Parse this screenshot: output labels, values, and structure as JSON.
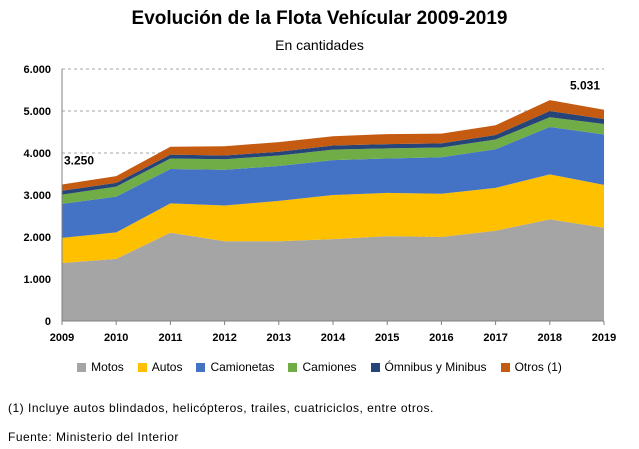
{
  "chart_data": {
    "type": "area",
    "stacked": true,
    "title": "Evolución de la Flota Vehícular 2009-2019",
    "subtitle": "En cantidades",
    "xlabel": "",
    "ylabel": "",
    "ylim": [
      0,
      6000
    ],
    "yticks": [
      0,
      1000,
      2000,
      3000,
      4000,
      5000,
      6000
    ],
    "ytick_labels": [
      "0",
      "1.000",
      "2.000",
      "3.000",
      "4.000",
      "5.000",
      "6.000"
    ],
    "categories": [
      "2009",
      "2010",
      "2011",
      "2012",
      "2013",
      "2014",
      "2015",
      "2016",
      "2017",
      "2018",
      "2019"
    ],
    "series": [
      {
        "name": "Motos",
        "color": "#a5a5a5",
        "values": [
          1380,
          1480,
          2100,
          1900,
          1900,
          1950,
          2020,
          2000,
          2150,
          2420,
          2220
        ]
      },
      {
        "name": "Autos",
        "color": "#ffc000",
        "values": [
          600,
          630,
          700,
          850,
          960,
          1050,
          1030,
          1030,
          1020,
          1070,
          1020
        ]
      },
      {
        "name": "Camionetas",
        "color": "#4472c4",
        "values": [
          810,
          850,
          820,
          850,
          830,
          830,
          820,
          870,
          920,
          1130,
          1200
        ]
      },
      {
        "name": "Camiones",
        "color": "#70ad47",
        "values": [
          220,
          240,
          250,
          250,
          250,
          250,
          240,
          230,
          230,
          230,
          250
        ]
      },
      {
        "name": "Ómnibus y Minibus",
        "color": "#264478",
        "values": [
          90,
          90,
          90,
          90,
          90,
          100,
          100,
          100,
          110,
          150,
          120
        ]
      },
      {
        "name": "Otros (1)",
        "color": "#c55a11",
        "values": [
          150,
          160,
          190,
          220,
          230,
          220,
          240,
          230,
          230,
          260,
          221
        ]
      }
    ],
    "annotations": [
      {
        "category": "2009",
        "label": "3.250"
      },
      {
        "category": "2019",
        "label": "5.031"
      }
    ],
    "gridlines": "dashed",
    "legend_position": "bottom"
  },
  "footnote": "(1) Incluye autos blindados, helicópteros, trailes, cuatriciclos, entre otros.",
  "source": "Fuente: Ministerio del Interior"
}
